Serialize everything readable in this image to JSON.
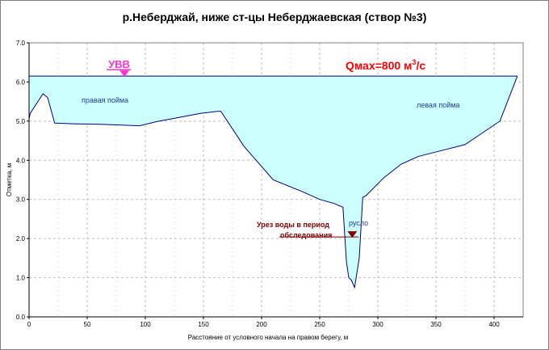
{
  "chart_data": {
    "type": "area",
    "title": "р.Неберджай, ниже ст-цы Неберджаевская (створ №3)",
    "xlabel": "Расстояние от условного начала на правом берегу, м",
    "ylabel": "Отметка, м",
    "xlim": [
      0,
      425
    ],
    "ylim": [
      0,
      7
    ],
    "x_ticks": [
      "0",
      "50",
      "100",
      "150",
      "200",
      "250",
      "300",
      "350",
      "400"
    ],
    "y_ticks": [
      "0.0",
      "1.0",
      "2.0",
      "3.0",
      "4.0",
      "5.0",
      "6.0",
      "7.0"
    ],
    "grid": true,
    "water_level": 6.15,
    "surveyed_water_level": 2.0,
    "profile": {
      "x": [
        0,
        1,
        12,
        16,
        22,
        40,
        60,
        80,
        95,
        110,
        130,
        148,
        162,
        165,
        185,
        210,
        235,
        250,
        262,
        270,
        273,
        275,
        277,
        280,
        284,
        287,
        290,
        305,
        320,
        335,
        355,
        375,
        390,
        405,
        420
      ],
      "y": [
        5.05,
        5.2,
        5.7,
        5.6,
        4.95,
        4.93,
        4.92,
        4.9,
        4.88,
        4.99,
        5.1,
        5.2,
        5.25,
        5.25,
        4.35,
        3.5,
        3.2,
        3.0,
        2.9,
        2.8,
        1.4,
        1.0,
        0.95,
        0.75,
        1.5,
        3.05,
        3.1,
        3.55,
        3.9,
        4.1,
        4.25,
        4.4,
        4.7,
        5.0,
        6.15
      ]
    },
    "colors": {
      "water_fill": "#ccffff",
      "profile_line": "#000080",
      "grid": "#bfbfbf",
      "label_blue": "#1f3b8f",
      "label_dark_red": "#800000",
      "label_red": "#ff0000",
      "marker_magenta": "#ff33cc"
    },
    "annotations": {
      "uvv": "УВВ",
      "qmax_prefix": "Qмах=800 м",
      "qmax_sup": "3",
      "qmax_suffix": "/с",
      "right_floodplain": "правая пойма",
      "left_floodplain": "левая пойма",
      "channel": "русло",
      "survey_line1": "Урез воды в период",
      "survey_line2": "обследования"
    }
  }
}
